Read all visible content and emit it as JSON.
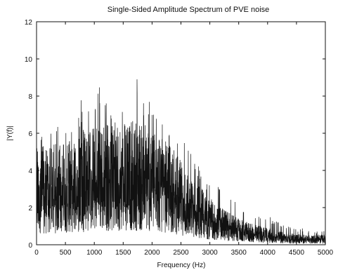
{
  "chart_data": {
    "type": "line",
    "title": "Single-Sided Amplitude Spectrum of PVE noise",
    "xlabel": "Frequency (Hz)",
    "ylabel": "|Y(f)|",
    "xlim": [
      0,
      5000
    ],
    "ylim": [
      0,
      12
    ],
    "xticks": [
      0,
      500,
      1000,
      1500,
      2000,
      2500,
      3000,
      3500,
      4000,
      4500,
      5000
    ],
    "yticks": [
      0,
      2,
      4,
      6,
      8,
      10,
      12
    ],
    "grid": false,
    "line_color": "#111111",
    "series": [
      {
        "values_description_note_omitted": null,
        "x": [
          0,
          100,
          200,
          300,
          400,
          500,
          600,
          700,
          800,
          900,
          1000,
          1100,
          1200,
          1300,
          1400,
          1500,
          1600,
          1700,
          1800,
          1850,
          1900,
          2000,
          2100,
          2200,
          2300,
          2400,
          2500,
          2600,
          2700,
          2800,
          2900,
          3000,
          3200,
          3400,
          3600,
          3800,
          4000,
          4200,
          4400,
          4600,
          4800,
          5000
        ],
        "y_envelope_max": [
          6.2,
          6.4,
          6.3,
          6.8,
          6.5,
          7.1,
          7.3,
          7.8,
          8.0,
          7.6,
          8.0,
          8.7,
          8.5,
          7.2,
          8.2,
          8.7,
          8.0,
          8.6,
          10.1,
          8.5,
          8.2,
          7.7,
          7.4,
          7.5,
          6.2,
          5.8,
          5.9,
          5.5,
          4.8,
          4.5,
          4.0,
          3.6,
          3.0,
          2.6,
          2.1,
          1.7,
          1.6,
          1.3,
          1.0,
          0.9,
          0.8,
          0.9
        ],
        "y_envelope_typical": [
          3.0,
          3.0,
          2.9,
          3.0,
          3.1,
          3.2,
          3.2,
          3.3,
          3.4,
          3.5,
          3.5,
          3.6,
          3.7,
          3.6,
          3.7,
          3.8,
          3.7,
          3.7,
          3.6,
          3.5,
          3.5,
          3.4,
          3.3,
          3.2,
          3.0,
          2.8,
          2.5,
          2.2,
          2.0,
          1.8,
          1.6,
          1.4,
          1.1,
          0.9,
          0.7,
          0.6,
          0.5,
          0.4,
          0.35,
          0.3,
          0.3,
          0.3
        ]
      }
    ]
  }
}
